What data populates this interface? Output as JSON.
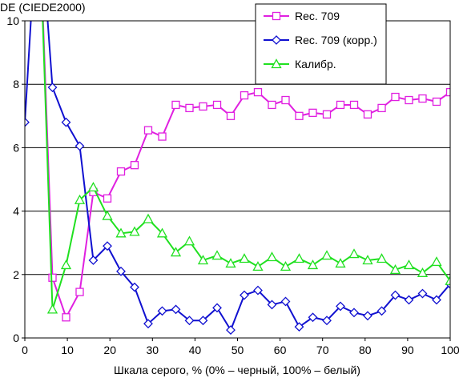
{
  "chart_data": {
    "type": "line",
    "title": "",
    "ylabel": "DE (CIEDE2000)",
    "xlabel": "Шкала серого, % (0% – черный, 100% – белый)",
    "xlim": [
      0,
      100
    ],
    "ylim": [
      0,
      10
    ],
    "xticks": [
      0,
      10,
      20,
      30,
      40,
      50,
      60,
      70,
      80,
      90,
      100
    ],
    "yticks": [
      0,
      2,
      4,
      6,
      8,
      10
    ],
    "x_tick_labels": [
      "0",
      "10",
      "20",
      "30",
      "40",
      "50",
      "60",
      "70",
      "80",
      "90",
      "100"
    ],
    "y_tick_labels": [
      "0",
      "2",
      "4",
      "6",
      "8",
      "10"
    ],
    "grid": "horizontal",
    "legend_position": "top-right",
    "x": [
      0,
      3.2,
      6.5,
      9.7,
      12.9,
      16.1,
      19.4,
      22.6,
      25.8,
      29,
      32.3,
      35.5,
      38.7,
      41.9,
      45.2,
      48.4,
      51.6,
      54.8,
      58.1,
      61.3,
      64.5,
      67.7,
      71,
      74.2,
      77.4,
      80.6,
      83.9,
      87.1,
      90.3,
      93.5,
      96.8,
      100
    ],
    "series": [
      {
        "name": "Rec. 709",
        "color": "#e020e0",
        "marker": "square",
        "values": [
          null,
          14,
          1.9,
          0.65,
          1.45,
          4.6,
          4.4,
          5.25,
          5.45,
          6.55,
          6.35,
          7.35,
          7.25,
          7.3,
          7.35,
          7.0,
          7.65,
          7.75,
          7.35,
          7.5,
          7.0,
          7.1,
          7.05,
          7.35,
          7.35,
          7.05,
          7.25,
          7.6,
          7.5,
          7.55,
          7.45,
          7.75
        ]
      },
      {
        "name": "Rec. 709 (корр.)",
        "color": "#1010d0",
        "marker": "diamond",
        "values": [
          6.8,
          14,
          7.9,
          6.8,
          6.05,
          2.45,
          2.9,
          2.1,
          1.6,
          0.45,
          0.85,
          0.9,
          0.55,
          0.55,
          0.95,
          0.25,
          1.35,
          1.5,
          1.05,
          1.15,
          0.35,
          0.65,
          0.55,
          1.0,
          0.8,
          0.7,
          0.85,
          1.35,
          1.2,
          1.4,
          1.2,
          1.7
        ]
      },
      {
        "name": "Калибр.",
        "color": "#20e020",
        "marker": "triangle",
        "values": [
          null,
          14,
          0.9,
          2.3,
          4.35,
          4.75,
          3.85,
          3.3,
          3.35,
          3.75,
          3.3,
          2.7,
          3.05,
          2.45,
          2.6,
          2.35,
          2.5,
          2.25,
          2.55,
          2.25,
          2.5,
          2.3,
          2.6,
          2.35,
          2.65,
          2.45,
          2.5,
          2.15,
          2.3,
          2.05,
          2.4,
          1.8
        ]
      }
    ]
  }
}
